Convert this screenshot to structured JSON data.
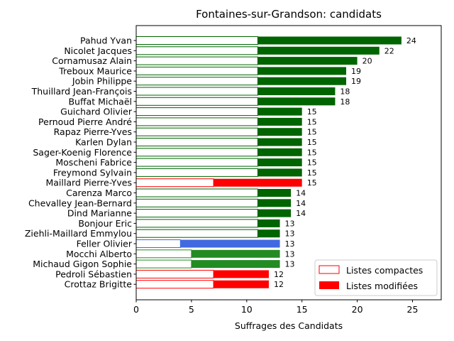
{
  "chart_data": {
    "type": "bar",
    "orientation": "horizontal",
    "stacked": true,
    "title": "Fontaines-sur-Grandson: candidats",
    "xlabel": "Suffrages des Candidats",
    "xlim": [
      0,
      27.6
    ],
    "xticks": [
      0,
      5,
      10,
      15,
      20,
      25
    ],
    "grid": false,
    "legend_position": "lower-right",
    "series": [
      {
        "name": "Listes compactes",
        "style": "outline"
      },
      {
        "name": "Listes modifiées",
        "style": "filled"
      }
    ],
    "legend_colors": {
      "outline": "#ff0000",
      "fill": "#ff0000"
    },
    "candidates": [
      {
        "name": "Pahud Yvan",
        "compact": 11,
        "modified": 13,
        "total": 24,
        "color": "#006400"
      },
      {
        "name": "Nicolet Jacques",
        "compact": 11,
        "modified": 11,
        "total": 22,
        "color": "#006400"
      },
      {
        "name": "Cornamusaz Alain",
        "compact": 11,
        "modified": 9,
        "total": 20,
        "color": "#006400"
      },
      {
        "name": "Treboux Maurice",
        "compact": 11,
        "modified": 8,
        "total": 19,
        "color": "#006400"
      },
      {
        "name": "Jobin Philippe",
        "compact": 11,
        "modified": 8,
        "total": 19,
        "color": "#006400"
      },
      {
        "name": "Thuillard Jean-François",
        "compact": 11,
        "modified": 7,
        "total": 18,
        "color": "#006400"
      },
      {
        "name": "Buffat Michaël",
        "compact": 11,
        "modified": 7,
        "total": 18,
        "color": "#006400"
      },
      {
        "name": "Guichard Olivier",
        "compact": 11,
        "modified": 4,
        "total": 15,
        "color": "#006400"
      },
      {
        "name": "Pernoud Pierre André",
        "compact": 11,
        "modified": 4,
        "total": 15,
        "color": "#006400"
      },
      {
        "name": "Rapaz Pierre-Yves",
        "compact": 11,
        "modified": 4,
        "total": 15,
        "color": "#006400"
      },
      {
        "name": "Karlen Dylan",
        "compact": 11,
        "modified": 4,
        "total": 15,
        "color": "#006400"
      },
      {
        "name": "Sager-Koenig Florence",
        "compact": 11,
        "modified": 4,
        "total": 15,
        "color": "#006400"
      },
      {
        "name": "Moscheni Fabrice",
        "compact": 11,
        "modified": 4,
        "total": 15,
        "color": "#006400"
      },
      {
        "name": "Freymond Sylvain",
        "compact": 11,
        "modified": 4,
        "total": 15,
        "color": "#006400"
      },
      {
        "name": "Maillard Pierre-Yves",
        "compact": 7,
        "modified": 8,
        "total": 15,
        "color": "#ff0000"
      },
      {
        "name": "Carenza Marco",
        "compact": 11,
        "modified": 3,
        "total": 14,
        "color": "#006400"
      },
      {
        "name": "Chevalley Jean-Bernard",
        "compact": 11,
        "modified": 3,
        "total": 14,
        "color": "#006400"
      },
      {
        "name": "Dind Marianne",
        "compact": 11,
        "modified": 3,
        "total": 14,
        "color": "#006400"
      },
      {
        "name": "Bonjour Eric",
        "compact": 11,
        "modified": 2,
        "total": 13,
        "color": "#006400"
      },
      {
        "name": "Ziehli-Maillard Emmylou",
        "compact": 11,
        "modified": 2,
        "total": 13,
        "color": "#006400"
      },
      {
        "name": "Feller Olivier",
        "compact": 4,
        "modified": 9,
        "total": 13,
        "color": "#4169e1"
      },
      {
        "name": "Mocchi Alberto",
        "compact": 5,
        "modified": 8,
        "total": 13,
        "color": "#228b22"
      },
      {
        "name": "Michaud Gigon Sophie",
        "compact": 5,
        "modified": 8,
        "total": 13,
        "color": "#228b22"
      },
      {
        "name": "Pedroli Sébastien",
        "compact": 7,
        "modified": 5,
        "total": 12,
        "color": "#ff0000"
      },
      {
        "name": "Crottaz Brigitte",
        "compact": 7,
        "modified": 5,
        "total": 12,
        "color": "#ff0000"
      }
    ]
  }
}
